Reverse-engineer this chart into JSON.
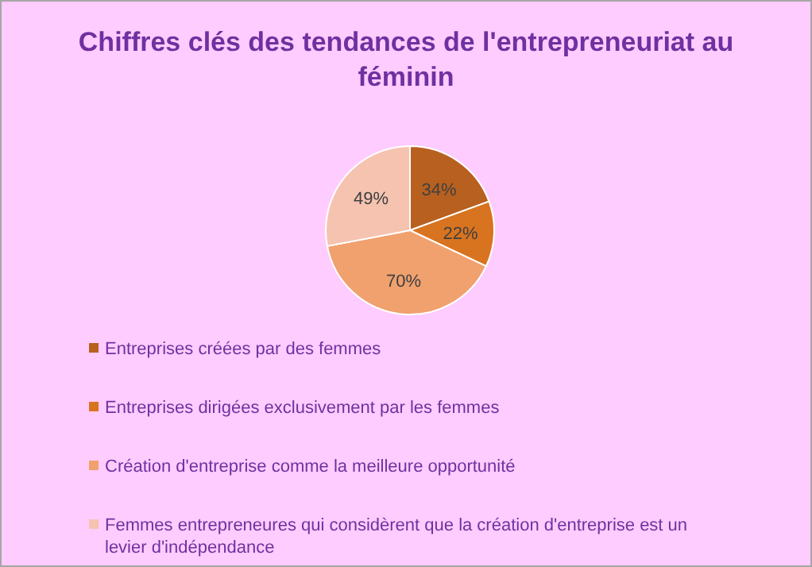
{
  "chart_data": {
    "type": "pie",
    "title": "Chiffres clés des tendances de l'entrepreneuriat au féminin",
    "categories": [
      "Entreprises créées par des femmes",
      "Entreprises dirigées exclusivement par les femmes",
      "Création d'entreprise comme la meilleure opportunité",
      "Femmes entrepreneures qui considèrent que la création d'entreprise est un levier d'indépendance"
    ],
    "values": [
      34,
      22,
      70,
      49
    ],
    "colors": [
      "#b8601f",
      "#d8731f",
      "#f0a16e",
      "#f5c3b0"
    ],
    "value_labels": [
      "34%",
      "22%",
      "70%",
      "49%"
    ],
    "legend": "bottom"
  }
}
